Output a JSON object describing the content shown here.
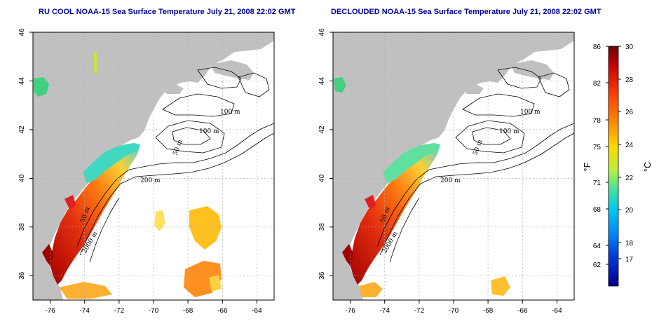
{
  "maps": [
    {
      "title": "RU COOL NOAA-15 Sea Surface Temperature July 21, 2008 22:02 GMT"
    },
    {
      "title": "DECLOUDED NOAA-15 Sea Surface Temperature July 21, 2008 22:02 GMT"
    }
  ],
  "axes": {
    "x_ticks": [
      "-76",
      "-74",
      "-72",
      "-70",
      "-68",
      "-66",
      "-64"
    ],
    "y_ticks": [
      "46",
      "44",
      "42",
      "40",
      "38",
      "36"
    ],
    "x_range": [
      -77,
      -63
    ],
    "y_range": [
      35,
      46
    ]
  },
  "contour_labels": [
    "100 m",
    "100 m",
    "50 m",
    "200 m",
    "50 m",
    "2000 m"
  ],
  "colorbar": {
    "f_ticks": [
      "86",
      "82",
      "78",
      "75",
      "71",
      "68",
      "64",
      "62"
    ],
    "c_ticks": [
      "30",
      "28",
      "26",
      "24",
      "22",
      "20",
      "18",
      "17"
    ],
    "f_unit": "°F",
    "c_unit": "°C"
  },
  "colors": {
    "land": "#c0c0c0",
    "ocean": "#ffffff",
    "warm": "#d42a10",
    "cool": "#20c0e0",
    "title": "#000099"
  }
}
